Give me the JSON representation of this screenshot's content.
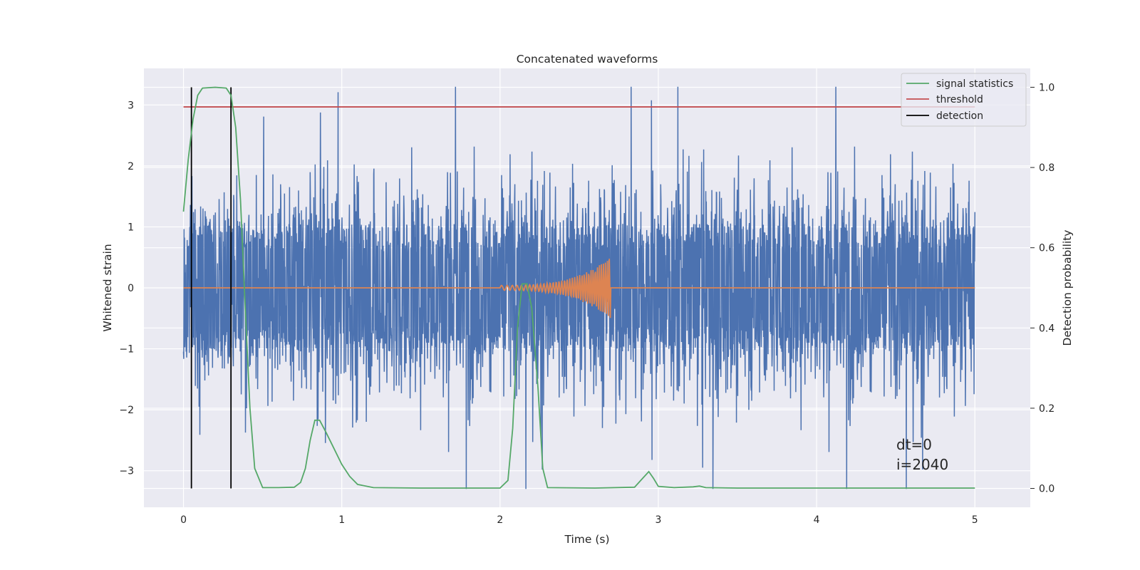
{
  "chart_data": {
    "type": "line",
    "title": "Concatenated waveforms",
    "xlabel": "Time (s)",
    "ylabel_left": "Whitened strain",
    "ylabel_right": "Detection probability",
    "xlim": [
      -0.25,
      5.35
    ],
    "ylim_left": [
      -3.6,
      3.6
    ],
    "ylim_right": [
      -0.047,
      1.047
    ],
    "xticks": [
      0,
      1,
      2,
      3,
      4,
      5
    ],
    "xtick_labels": [
      "0",
      "1",
      "2",
      "3",
      "4",
      "5"
    ],
    "yticks_left": [
      3,
      2,
      1,
      0,
      -1,
      -2,
      -3
    ],
    "ytick_labels_left": [
      "3",
      "2",
      "1",
      "0",
      "−1",
      "−2",
      "−3"
    ],
    "yticks_right": [
      1.0,
      0.8,
      0.6,
      0.4,
      0.2,
      0.0
    ],
    "ytick_labels_right": [
      "1.0",
      "0.8",
      "0.6",
      "0.4",
      "0.2",
      "0.0"
    ],
    "grid": true,
    "legend_placement": "top-right",
    "annotations": [
      "dt=0",
      "i=2040"
    ],
    "series": [
      {
        "name": "",
        "axis": "left",
        "color": "#4c72b0",
        "kind": "noise",
        "x_range": [
          0,
          5
        ],
        "band_abs": 0.65,
        "envelope_abs": 3.3
      },
      {
        "name": "",
        "axis": "left",
        "color": "#dd8452",
        "kind": "chirp",
        "x_range": [
          0,
          5
        ],
        "chirp_start": 2.0,
        "chirp_end": 2.7,
        "peak_amplitude": 0.5
      },
      {
        "name": "signal statistics",
        "axis": "right",
        "color": "#55a868",
        "points": [
          [
            0.0,
            0.69
          ],
          [
            0.03,
            0.82
          ],
          [
            0.06,
            0.92
          ],
          [
            0.09,
            0.98
          ],
          [
            0.12,
            0.998
          ],
          [
            0.2,
            1.0
          ],
          [
            0.27,
            0.998
          ],
          [
            0.3,
            0.98
          ],
          [
            0.33,
            0.9
          ],
          [
            0.36,
            0.72
          ],
          [
            0.39,
            0.45
          ],
          [
            0.42,
            0.2
          ],
          [
            0.45,
            0.05
          ],
          [
            0.5,
            0.002
          ],
          [
            0.6,
            0.002
          ],
          [
            0.7,
            0.003
          ],
          [
            0.74,
            0.015
          ],
          [
            0.77,
            0.05
          ],
          [
            0.8,
            0.12
          ],
          [
            0.83,
            0.17
          ],
          [
            0.86,
            0.17
          ],
          [
            0.9,
            0.14
          ],
          [
            0.95,
            0.1
          ],
          [
            1.0,
            0.06
          ],
          [
            1.05,
            0.03
          ],
          [
            1.1,
            0.01
          ],
          [
            1.2,
            0.002
          ],
          [
            1.5,
            0.001
          ],
          [
            2.0,
            0.001
          ],
          [
            2.05,
            0.02
          ],
          [
            2.08,
            0.15
          ],
          [
            2.11,
            0.4
          ],
          [
            2.14,
            0.51
          ],
          [
            2.17,
            0.51
          ],
          [
            2.2,
            0.45
          ],
          [
            2.24,
            0.25
          ],
          [
            2.27,
            0.05
          ],
          [
            2.3,
            0.002
          ],
          [
            2.6,
            0.001
          ],
          [
            2.85,
            0.003
          ],
          [
            2.9,
            0.025
          ],
          [
            2.94,
            0.042
          ],
          [
            2.97,
            0.025
          ],
          [
            3.0,
            0.005
          ],
          [
            3.1,
            0.002
          ],
          [
            3.22,
            0.004
          ],
          [
            3.26,
            0.006
          ],
          [
            3.3,
            0.002
          ],
          [
            3.5,
            0.001
          ],
          [
            4.0,
            0.001
          ],
          [
            5.0,
            0.001
          ]
        ]
      },
      {
        "name": "threshold",
        "axis": "right",
        "color": "#c44e52",
        "y": 0.951,
        "x_range": [
          0,
          5
        ]
      },
      {
        "name": "detection",
        "axis": "right",
        "color": "#000000",
        "x_values": [
          0.05,
          0.3
        ],
        "y_range": [
          0.0,
          1.0
        ]
      }
    ]
  }
}
